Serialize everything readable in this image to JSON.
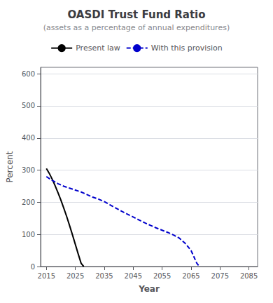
{
  "chart_data": {
    "type": "line",
    "title": "OASDI Trust Fund Ratio",
    "subtitle": "(assets as a percentage of annual expenditures)",
    "xlabel": "Year",
    "ylabel": "Percent",
    "xlim": [
      2013,
      2088
    ],
    "ylim": [
      0,
      620
    ],
    "xticks": [
      2015,
      2025,
      2035,
      2045,
      2055,
      2065,
      2075,
      2085
    ],
    "yticks": [
      0,
      100,
      200,
      300,
      400,
      500,
      600
    ],
    "grid": "y",
    "legend": "top",
    "series": [
      {
        "name": "Present law",
        "color": "#000000",
        "line_style": "solid",
        "x": [
          2015,
          2016,
          2017,
          2018,
          2019,
          2020,
          2021,
          2022,
          2023,
          2024,
          2025,
          2026,
          2027,
          2027.909090909091
        ],
        "values": [
          305,
          290,
          272,
          252,
          230,
          207,
          182,
          156,
          128,
          99,
          69,
          39,
          10,
          0
        ]
      },
      {
        "name": "With this provision",
        "color": "#0000cc",
        "line_style": "dashed",
        "x": [
          2015,
          2017,
          2019,
          2021,
          2023,
          2025,
          2027,
          2029,
          2031,
          2033,
          2035,
          2037,
          2039,
          2041,
          2043,
          2045,
          2047,
          2049,
          2051,
          2053,
          2055,
          2057,
          2059,
          2061,
          2063,
          2065,
          2067,
          2067.909090909091
        ],
        "values": [
          280,
          268,
          258,
          250,
          244,
          238,
          232,
          224,
          216,
          210,
          202,
          192,
          182,
          172,
          163,
          154,
          145,
          136,
          128,
          120,
          113,
          106,
          98,
          88,
          72,
          50,
          10,
          0
        ]
      }
    ]
  }
}
